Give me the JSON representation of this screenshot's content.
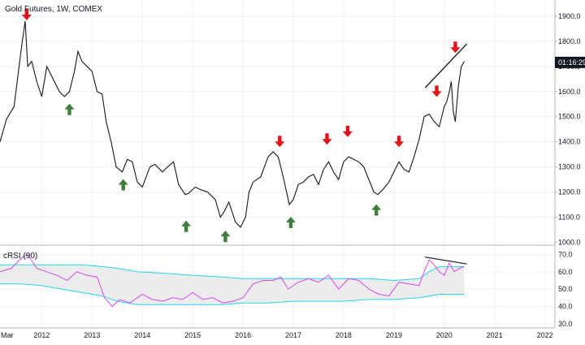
{
  "chart_data": [
    {
      "type": "line",
      "title": "Gold Futures, 1W, COMEX",
      "countdown": "01:16:29",
      "colors": {
        "price": "#131722",
        "sell_arrow": "#e0141a",
        "buy_arrow": "#3f7f3c",
        "grid": "#eef0f3",
        "trendline": "#131722"
      },
      "x_tick_labels": [
        "Mar",
        "2012",
        "2013",
        "2014",
        "2015",
        "2016",
        "2017",
        "2018",
        "2019",
        "2020",
        "2021",
        "2022"
      ],
      "x_tick_dates": [
        2011.17,
        2012.0,
        2013.0,
        2014.0,
        2015.0,
        2016.0,
        2017.0,
        2018.0,
        2019.0,
        2020.0,
        2021.0,
        2022.0
      ],
      "xlim": [
        2011.17,
        2022.2
      ],
      "y_tick_labels": [
        "1900.0",
        "1800.0",
        "1700.0",
        "1600.0",
        "1500.0",
        "1400.0",
        "1300.0",
        "1200.0",
        "1100.0",
        "1000.0"
      ],
      "ylim": [
        995,
        1945
      ],
      "series": [
        {
          "x": [
            2011.17,
            2011.3,
            2011.45,
            2011.6,
            2011.67,
            2011.72,
            2011.8,
            2011.9,
            2012.0,
            2012.1,
            2012.2,
            2012.35,
            2012.45,
            2012.55,
            2012.65,
            2012.72,
            2012.8,
            2012.9,
            2013.0,
            2013.1,
            2013.2,
            2013.28,
            2013.38,
            2013.48,
            2013.6,
            2013.7,
            2013.8,
            2013.9,
            2014.0,
            2014.15,
            2014.25,
            2014.4,
            2014.5,
            2014.62,
            2014.72,
            2014.85,
            2014.92,
            2015.05,
            2015.15,
            2015.3,
            2015.45,
            2015.55,
            2015.62,
            2015.72,
            2015.85,
            2015.95,
            2016.05,
            2016.12,
            2016.2,
            2016.35,
            2016.5,
            2016.6,
            2016.7,
            2016.8,
            2016.92,
            2017.0,
            2017.1,
            2017.2,
            2017.3,
            2017.4,
            2017.5,
            2017.6,
            2017.7,
            2017.8,
            2017.9,
            2018.0,
            2018.1,
            2018.2,
            2018.3,
            2018.4,
            2018.5,
            2018.6,
            2018.68,
            2018.78,
            2018.9,
            2019.0,
            2019.1,
            2019.2,
            2019.3,
            2019.4,
            2019.5,
            2019.6,
            2019.7,
            2019.8,
            2019.9,
            2020.0,
            2020.05,
            2020.1,
            2020.14,
            2020.18,
            2020.22,
            2020.28,
            2020.34,
            2020.4
          ],
          "values": [
            1400,
            1490,
            1540,
            1780,
            1880,
            1700,
            1720,
            1640,
            1580,
            1700,
            1660,
            1600,
            1580,
            1600,
            1680,
            1760,
            1720,
            1700,
            1680,
            1600,
            1590,
            1480,
            1400,
            1300,
            1280,
            1330,
            1320,
            1240,
            1220,
            1300,
            1310,
            1280,
            1300,
            1320,
            1230,
            1190,
            1195,
            1220,
            1210,
            1200,
            1170,
            1100,
            1120,
            1160,
            1080,
            1060,
            1100,
            1200,
            1240,
            1260,
            1340,
            1360,
            1340,
            1260,
            1150,
            1170,
            1230,
            1240,
            1260,
            1270,
            1230,
            1290,
            1320,
            1280,
            1250,
            1320,
            1340,
            1330,
            1320,
            1300,
            1250,
            1200,
            1190,
            1210,
            1240,
            1280,
            1320,
            1290,
            1280,
            1340,
            1410,
            1500,
            1510,
            1480,
            1460,
            1540,
            1560,
            1600,
            1640,
            1520,
            1480,
            1620,
            1700,
            1720
          ]
        }
      ],
      "sell_signals": [
        {
          "x": 2011.7,
          "y": 1890
        },
        {
          "x": 2016.73,
          "y": 1385
        },
        {
          "x": 2017.67,
          "y": 1395
        },
        {
          "x": 2018.08,
          "y": 1425
        },
        {
          "x": 2019.1,
          "y": 1385
        },
        {
          "x": 2019.85,
          "y": 1585
        },
        {
          "x": 2020.22,
          "y": 1760
        }
      ],
      "buy_signals": [
        {
          "x": 2012.55,
          "y": 1545
        },
        {
          "x": 2013.62,
          "y": 1245
        },
        {
          "x": 2014.87,
          "y": 1080
        },
        {
          "x": 2015.65,
          "y": 1040
        },
        {
          "x": 2016.95,
          "y": 1095
        },
        {
          "x": 2018.65,
          "y": 1145
        }
      ],
      "trendline": {
        "x": [
          2019.62,
          2020.45
        ],
        "y": [
          1615,
          1790
        ]
      },
      "current_price": 1716
    },
    {
      "type": "line",
      "title": "cRSI (90)",
      "y_tick_labels": [
        "70.0",
        "60.0",
        "50.0",
        "40.0",
        "30.0"
      ],
      "ylim": [
        28.5,
        73.5
      ],
      "colors": {
        "crsi": "#d946ef",
        "bands": "#22d3ee",
        "band_fill": "#ececec"
      },
      "crsi": {
        "x": [
          2011.17,
          2011.4,
          2011.6,
          2011.72,
          2011.9,
          2012.1,
          2012.3,
          2012.5,
          2012.7,
          2012.9,
          2013.1,
          2013.25,
          2013.4,
          2013.55,
          2013.75,
          2014.0,
          2014.2,
          2014.4,
          2014.6,
          2014.8,
          2015.0,
          2015.2,
          2015.4,
          2015.6,
          2015.8,
          2016.0,
          2016.2,
          2016.4,
          2016.6,
          2016.75,
          2016.9,
          2017.1,
          2017.3,
          2017.5,
          2017.7,
          2017.9,
          2018.1,
          2018.3,
          2018.5,
          2018.7,
          2018.9,
          2019.1,
          2019.3,
          2019.5,
          2019.6,
          2019.7,
          2019.8,
          2019.9,
          2020.0,
          2020.1,
          2020.2,
          2020.3,
          2020.4
        ],
        "values": [
          60,
          62,
          68,
          70,
          62,
          60,
          58,
          55,
          60,
          58,
          57,
          45,
          40,
          44,
          42,
          47,
          44,
          43,
          45,
          44,
          48,
          44,
          45,
          42,
          43,
          45,
          53,
          55,
          55,
          57,
          50,
          54,
          56,
          54,
          58,
          50,
          56,
          55,
          50,
          47,
          46,
          54,
          53,
          52,
          60,
          67,
          64,
          60,
          58,
          65,
          60,
          62,
          63
        ]
      },
      "upper_band": {
        "x": [
          2011.17,
          2011.6,
          2012.0,
          2012.8,
          2013.2,
          2013.5,
          2013.9,
          2014.5,
          2015.0,
          2015.6,
          2016.0,
          2016.5,
          2017.0,
          2017.5,
          2018.0,
          2018.5,
          2019.0,
          2019.5,
          2019.7,
          2019.9,
          2020.1,
          2020.4
        ],
        "values": [
          64,
          64,
          64,
          64,
          63,
          62,
          60,
          59,
          58,
          57,
          56,
          56,
          56,
          56,
          56,
          56,
          55,
          56,
          60,
          63,
          63,
          63
        ]
      },
      "lower_band": {
        "x": [
          2011.17,
          2011.6,
          2012.0,
          2012.8,
          2013.2,
          2013.5,
          2013.9,
          2014.5,
          2015.0,
          2015.6,
          2016.0,
          2016.5,
          2017.0,
          2017.5,
          2018.0,
          2018.5,
          2019.0,
          2019.5,
          2019.7,
          2019.9,
          2020.1,
          2020.4
        ],
        "values": [
          53,
          53,
          52,
          48,
          46,
          43,
          41,
          41,
          41,
          41,
          42,
          42,
          43,
          43,
          43,
          44,
          44,
          45,
          46,
          47,
          47,
          47
        ]
      },
      "trendline": {
        "x": [
          2019.62,
          2020.45
        ],
        "y": [
          68.5,
          64.5
        ]
      }
    }
  ]
}
